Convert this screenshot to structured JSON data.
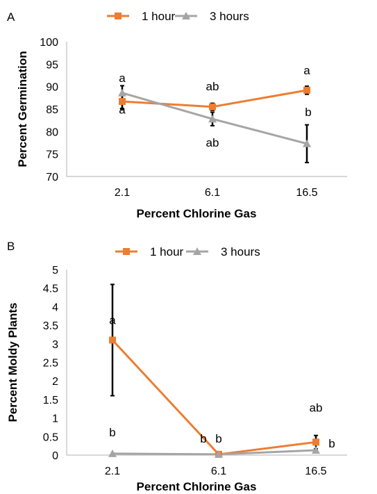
{
  "chart_data": [
    {
      "panel": "A",
      "type": "line",
      "categories": [
        "2.1",
        "6.1",
        "16.5"
      ],
      "xlabel": "Percent Chlorine Gas",
      "ylabel": "Percent Germination",
      "ylim": [
        70,
        100
      ],
      "yticks": [
        "70",
        "75",
        "80",
        "85",
        "90",
        "95",
        "100"
      ],
      "grid": false,
      "legend_position": "top",
      "series": [
        {
          "name": "1 hour",
          "color": "#ED7D31",
          "marker": "square",
          "values": [
            86.7,
            85.5,
            89.2
          ],
          "errors": [
            1.7,
            0.8,
            0.9
          ],
          "letters": [
            "a",
            "ab",
            "a"
          ]
        },
        {
          "name": "3 hours",
          "color": "#A5A5A5",
          "marker": "triangle",
          "values": [
            88.6,
            82.8,
            77.3
          ],
          "errors": [
            1.6,
            1.5,
            4.2
          ],
          "letters": [
            "a",
            "ab",
            "b"
          ]
        }
      ]
    },
    {
      "panel": "B",
      "type": "line",
      "categories": [
        "2.1",
        "6.1",
        "16.5"
      ],
      "xlabel": "Percent Chlorine Gas",
      "ylabel": "Percent Moldy Plants",
      "ylim": [
        0,
        5
      ],
      "yticks": [
        "0",
        "0.5",
        "1",
        "1.5",
        "2",
        "2.5",
        "3",
        "3.5",
        "4",
        "4.5",
        "5"
      ],
      "grid": false,
      "legend_position": "top",
      "series": [
        {
          "name": "1 hour",
          "color": "#ED7D31",
          "marker": "square",
          "values": [
            3.1,
            0.02,
            0.35
          ],
          "errors": [
            1.5,
            0.0,
            0.18
          ],
          "letters": [
            "a",
            "b",
            "ab"
          ]
        },
        {
          "name": "3 hours",
          "color": "#A5A5A5",
          "marker": "triangle",
          "values": [
            0.04,
            0.02,
            0.13
          ],
          "errors": [
            0.0,
            0.0,
            0.0
          ],
          "letters": [
            "b",
            "b",
            "b"
          ]
        }
      ]
    }
  ]
}
